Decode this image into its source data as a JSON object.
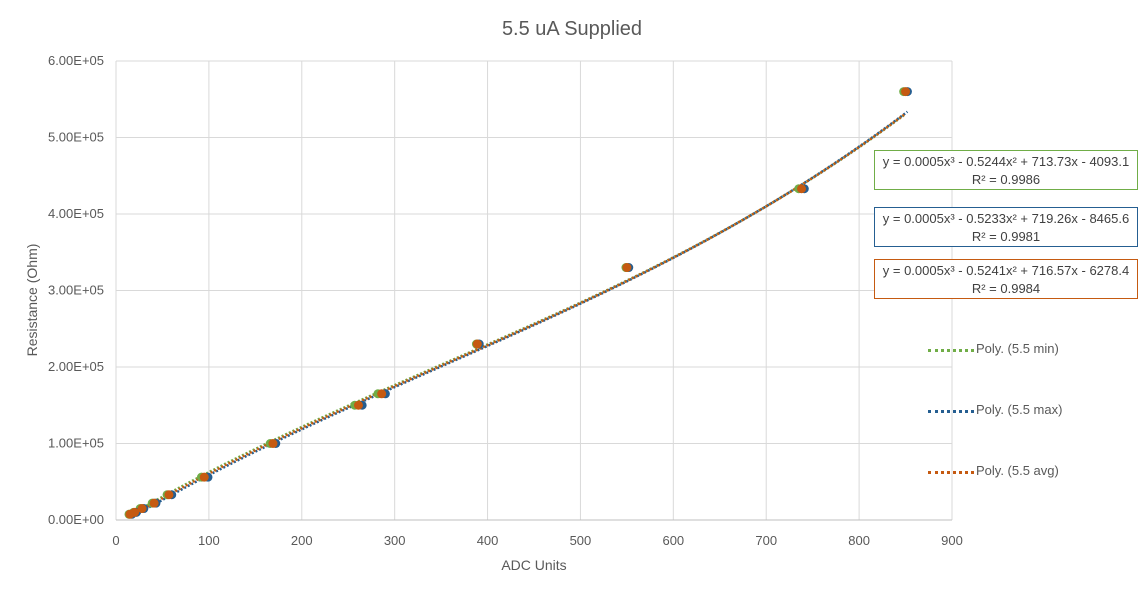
{
  "chart_data": {
    "type": "scatter",
    "title": "5.5 uA Supplied",
    "xlabel": "ADC Units",
    "ylabel": "Resistance (Ohm)",
    "xlim": [
      0,
      900
    ],
    "ylim": [
      0,
      600000
    ],
    "x_ticks": [
      "0",
      "100",
      "200",
      "300",
      "400",
      "500",
      "600",
      "700",
      "800",
      "900"
    ],
    "y_ticks": [
      "0.00E+00",
      "1.00E+05",
      "2.00E+05",
      "3.00E+05",
      "4.00E+05",
      "5.00E+05",
      "6.00E+05"
    ],
    "grid": true,
    "legend_position": "right",
    "series": [
      {
        "name": "Poly. (5.5 min)",
        "color": "#70ad47",
        "x": [
          14,
          19,
          26,
          39,
          55,
          92,
          166,
          257,
          282,
          388,
          549,
          735,
          848
        ],
        "y": [
          7500,
          10000,
          15000,
          22000,
          33000,
          56000,
          100000,
          150000,
          165000,
          230000,
          330000,
          433000,
          560000
        ],
        "trendline": {
          "equation": "y = 0.0005x³ - 0.5244x² + 713.73x - 4093.1",
          "r2": "R² = 0.9986",
          "coef": [
            0.0005,
            -0.5244,
            713.73,
            -4093.1
          ]
        }
      },
      {
        "name": "Poly. (5.5 max)",
        "color": "#255e91",
        "x": [
          17,
          22,
          30,
          43,
          60,
          99,
          172,
          265,
          290,
          391,
          552,
          741,
          852
        ],
        "y": [
          7500,
          10000,
          15000,
          22000,
          33000,
          56000,
          100000,
          150000,
          165000,
          230000,
          330000,
          433000,
          560000
        ],
        "trendline": {
          "equation": "y = 0.0005x³ - 0.5233x² + 719.26x - 8465.6",
          "r2": "R² = 0.9981",
          "coef": [
            0.0005,
            -0.5233,
            719.26,
            -8465.6
          ]
        }
      },
      {
        "name": "Poly. (5.5 avg)",
        "color": "#c55a11",
        "x": [
          15,
          20,
          28,
          41,
          57,
          95,
          169,
          261,
          286,
          389,
          550,
          738,
          850
        ],
        "y": [
          7500,
          10000,
          15000,
          22000,
          33000,
          56000,
          100000,
          150000,
          165000,
          230000,
          330000,
          433000,
          560000
        ],
        "trendline": {
          "equation": "y = 0.0005x³ - 0.5241x² + 716.57x - 6278.4",
          "r2": "R² = 0.9984",
          "coef": [
            0.0005,
            -0.5241,
            716.57,
            -6278.4
          ]
        }
      }
    ]
  }
}
